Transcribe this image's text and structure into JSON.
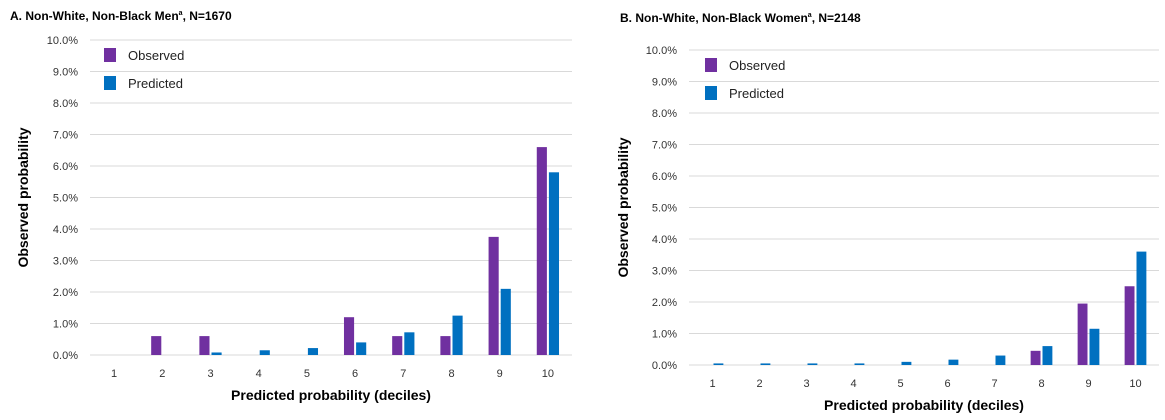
{
  "colors": {
    "observed": "#7030a0",
    "predicted": "#0070c0",
    "grid": "#d9d9d9"
  },
  "chart_data": [
    {
      "type": "bar",
      "title_main": "A. Non-White, Non-Black Men",
      "title_sup": "a",
      "title_tail": ", N=1670",
      "xlabel": "Predicted probability (deciles)",
      "ylabel": "Observed probability",
      "categories": [
        "1",
        "2",
        "3",
        "4",
        "5",
        "6",
        "7",
        "8",
        "9",
        "10"
      ],
      "yticks": [
        "0.0%",
        "1.0%",
        "2.0%",
        "3.0%",
        "4.0%",
        "5.0%",
        "6.0%",
        "7.0%",
        "8.0%",
        "9.0%",
        "10.0%"
      ],
      "ylim": [
        0,
        10
      ],
      "grid": true,
      "legend_position": "top-left",
      "series": [
        {
          "name": "Observed",
          "color_key": "observed",
          "values": [
            0,
            0.6,
            0.6,
            0,
            0,
            1.2,
            0.6,
            0.6,
            3.75,
            6.6
          ]
        },
        {
          "name": "Predicted",
          "color_key": "predicted",
          "values": [
            0,
            0,
            0.08,
            0.15,
            0.22,
            0.4,
            0.72,
            1.25,
            2.1,
            5.8
          ]
        }
      ]
    },
    {
      "type": "bar",
      "title_main": "B. Non-White, Non-Black Women",
      "title_sup": "a",
      "title_tail": ", N=2148",
      "xlabel": "Predicted probability (deciles)",
      "ylabel": "Observed probability",
      "categories": [
        "1",
        "2",
        "3",
        "4",
        "5",
        "6",
        "7",
        "8",
        "9",
        "10"
      ],
      "yticks": [
        "0.0%",
        "1.0%",
        "2.0%",
        "3.0%",
        "4.0%",
        "5.0%",
        "6.0%",
        "7.0%",
        "8.0%",
        "9.0%",
        "10.0%"
      ],
      "ylim": [
        0,
        10
      ],
      "grid": true,
      "legend_position": "top-left",
      "series": [
        {
          "name": "Observed",
          "color_key": "observed",
          "values": [
            0,
            0,
            0,
            0,
            0,
            0,
            0,
            0.45,
            1.95,
            2.5
          ]
        },
        {
          "name": "Predicted",
          "color_key": "predicted",
          "values": [
            0.05,
            0.05,
            0.05,
            0.05,
            0.1,
            0.17,
            0.3,
            0.6,
            1.15,
            3.6
          ]
        }
      ]
    }
  ]
}
